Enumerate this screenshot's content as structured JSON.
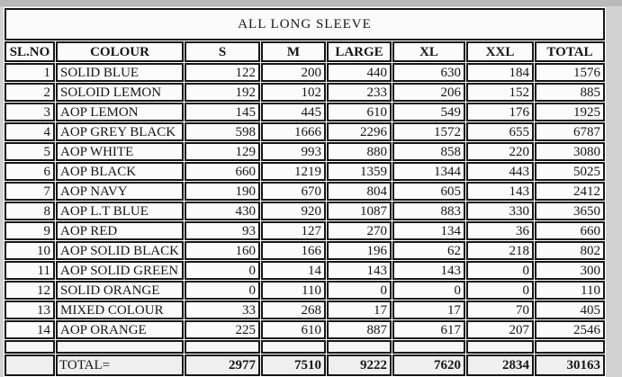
{
  "title": "ALL LONG SLEEVE",
  "colors": {
    "page_background": "#d2d2d2",
    "cell_background": "#fbfbfb",
    "total_row_background": "#efefef",
    "border": "#161616",
    "text": "#161616"
  },
  "table": {
    "headers": {
      "sl": "SL.NO",
      "colour": "COLOUR",
      "s": "S",
      "m": "M",
      "large": "LARGE",
      "xl": "XL",
      "xxl": "XXL",
      "total": "TOTAL"
    },
    "rows": [
      {
        "sl": "1",
        "colour": "SOLID BLUE",
        "s": "122",
        "m": "200",
        "large": "440",
        "xl": "630",
        "xxl": "184",
        "total": "1576"
      },
      {
        "sl": "2",
        "colour": "SOLOID LEMON",
        "s": "192",
        "m": "102",
        "large": "233",
        "xl": "206",
        "xxl": "152",
        "total": "885"
      },
      {
        "sl": "3",
        "colour": "AOP LEMON",
        "s": "145",
        "m": "445",
        "large": "610",
        "xl": "549",
        "xxl": "176",
        "total": "1925"
      },
      {
        "sl": "4",
        "colour": "AOP GREY BLACK",
        "s": "598",
        "m": "1666",
        "large": "2296",
        "xl": "1572",
        "xxl": "655",
        "total": "6787"
      },
      {
        "sl": "5",
        "colour": "AOP WHITE",
        "s": "129",
        "m": "993",
        "large": "880",
        "xl": "858",
        "xxl": "220",
        "total": "3080"
      },
      {
        "sl": "6",
        "colour": "AOP BLACK",
        "s": "660",
        "m": "1219",
        "large": "1359",
        "xl": "1344",
        "xxl": "443",
        "total": "5025"
      },
      {
        "sl": "7",
        "colour": "AOP NAVY",
        "s": "190",
        "m": "670",
        "large": "804",
        "xl": "605",
        "xxl": "143",
        "total": "2412"
      },
      {
        "sl": "8",
        "colour": "AOP L.T BLUE",
        "s": "430",
        "m": "920",
        "large": "1087",
        "xl": "883",
        "xxl": "330",
        "total": "3650"
      },
      {
        "sl": "9",
        "colour": "AOP RED",
        "s": "93",
        "m": "127",
        "large": "270",
        "xl": "134",
        "xxl": "36",
        "total": "660"
      },
      {
        "sl": "10",
        "colour": "AOP SOLID BLACK",
        "s": "160",
        "m": "166",
        "large": "196",
        "xl": "62",
        "xxl": "218",
        "total": "802"
      },
      {
        "sl": "11",
        "colour": "AOP SOLID GREEN",
        "s": "0",
        "m": "14",
        "large": "143",
        "xl": "143",
        "xxl": "0",
        "total": "300"
      },
      {
        "sl": "12",
        "colour": "SOLID ORANGE",
        "s": "0",
        "m": "110",
        "large": "0",
        "xl": "0",
        "xxl": "0",
        "total": "110"
      },
      {
        "sl": "13",
        "colour": "MIXED COLOUR",
        "s": "33",
        "m": "268",
        "large": "17",
        "xl": "17",
        "xxl": "70",
        "total": "405"
      },
      {
        "sl": "14",
        "colour": "AOP ORANGE",
        "s": "225",
        "m": "610",
        "large": "887",
        "xl": "617",
        "xxl": "207",
        "total": "2546"
      }
    ],
    "total_row": {
      "label": "TOTAL=",
      "s": "2977",
      "m": "7510",
      "large": "9222",
      "xl": "7620",
      "xxl": "2834",
      "total": "30163"
    }
  }
}
